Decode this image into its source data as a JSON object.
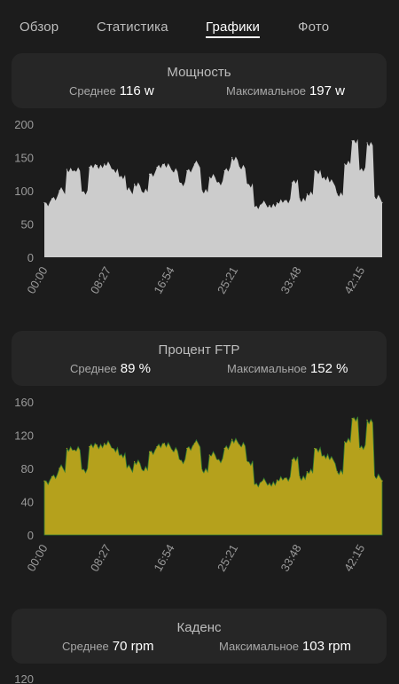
{
  "tabs": [
    {
      "label": "Обзор",
      "active": false
    },
    {
      "label": "Статистика",
      "active": false
    },
    {
      "label": "Графики",
      "active": true
    },
    {
      "label": "Фото",
      "active": false
    }
  ],
  "power": {
    "title": "Мощность",
    "avg_label": "Среднее",
    "avg_value": "116 w",
    "max_label": "Максимальное",
    "max_value": "197 w"
  },
  "ftp": {
    "title": "Процент FTP",
    "avg_label": "Среднее",
    "avg_value": "89 %",
    "max_label": "Максимальное",
    "max_value": "152 %"
  },
  "cadence": {
    "title": "Каденс",
    "avg_label": "Среднее",
    "avg_value": "70 rpm",
    "max_label": "Максимальное",
    "max_value": "103 rpm"
  },
  "colors": {
    "power_fill": "#cccccc",
    "ftp_fill": "#b5a11c",
    "ftp_edge": "#2e7d32"
  },
  "chart_data": [
    {
      "type": "area",
      "ylim": [
        0,
        200
      ],
      "yticks": [
        "0",
        "50",
        "100",
        "150",
        "200"
      ],
      "xticks": [
        "00:00",
        "08:27",
        "16:54",
        "25:21",
        "33:48",
        "42:15"
      ],
      "x_minutes": [
        0,
        1,
        2,
        3,
        4,
        5,
        6,
        7,
        8,
        9,
        10,
        11,
        12,
        13,
        14,
        15,
        16,
        17,
        18,
        19,
        20,
        21,
        22,
        23,
        24,
        25,
        26,
        27,
        28,
        29,
        30,
        31,
        32,
        33,
        34,
        35,
        36,
        37,
        38,
        39,
        40,
        41,
        42,
        43,
        44,
        45
      ],
      "series": [
        {
          "values": [
            82,
            88,
            100,
            132,
            130,
            98,
            135,
            138,
            140,
            132,
            120,
            100,
            110,
            98,
            125,
            135,
            140,
            130,
            112,
            130,
            140,
            100,
            120,
            112,
            130,
            150,
            135,
            110,
            75,
            80,
            78,
            82,
            85,
            112,
            88,
            95,
            130,
            118,
            112,
            95,
            140,
            175,
            130,
            172,
            90,
            82
          ]
        }
      ]
    },
    {
      "type": "area",
      "ylim": [
        0,
        160
      ],
      "yticks": [
        "0",
        "40",
        "80",
        "120",
        "160"
      ],
      "xticks": [
        "00:00",
        "08:27",
        "16:54",
        "25:21",
        "33:48",
        "42:15"
      ],
      "x_minutes": [
        0,
        1,
        2,
        3,
        4,
        5,
        6,
        7,
        8,
        9,
        10,
        11,
        12,
        13,
        14,
        15,
        16,
        17,
        18,
        19,
        20,
        21,
        22,
        23,
        24,
        25,
        26,
        27,
        28,
        29,
        30,
        31,
        32,
        33,
        34,
        35,
        36,
        37,
        38,
        39,
        40,
        41,
        42,
        43,
        44,
        45
      ],
      "series": [
        {
          "values": [
            65,
            70,
            80,
            104,
            102,
            78,
            106,
            108,
            110,
            104,
            95,
            80,
            88,
            78,
            100,
            106,
            110,
            102,
            90,
            104,
            110,
            78,
            96,
            90,
            104,
            115,
            108,
            88,
            60,
            64,
            62,
            66,
            68,
            90,
            70,
            76,
            104,
            94,
            90,
            76,
            112,
            140,
            104,
            138,
            70,
            65
          ]
        }
      ]
    },
    {
      "type": "area",
      "ylim": [
        0,
        120
      ],
      "yticks": [
        "120"
      ]
    }
  ]
}
